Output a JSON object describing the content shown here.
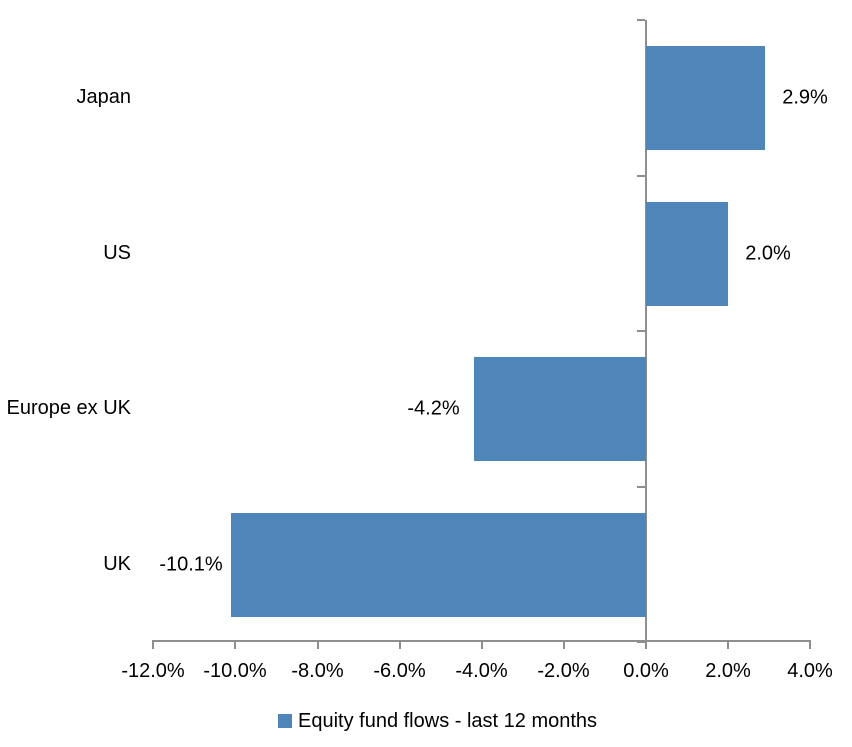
{
  "chart_data": {
    "type": "bar",
    "orientation": "horizontal",
    "title": "",
    "categories": [
      "Japan",
      "US",
      "Europe ex UK",
      "UK"
    ],
    "series": [
      {
        "name": "Equity fund flows - last 12 months",
        "values": [
          2.9,
          2.0,
          -4.2,
          -10.1
        ],
        "data_labels": [
          "2.9%",
          "2.0%",
          "-4.2%",
          "-10.1%"
        ],
        "color": "#4E86BA"
      }
    ],
    "x_axis": {
      "min": -12,
      "max": 4,
      "tick_values": [
        -12,
        -10,
        -8,
        -6,
        -4,
        -2,
        0,
        2,
        4
      ],
      "tick_labels": [
        "-12.0%",
        "-10.0%",
        "-8.0%",
        "-6.0%",
        "-4.0%",
        "-2.0%",
        "0.0%",
        "2.0%",
        "4.0%"
      ]
    },
    "legend": {
      "position": "bottom",
      "entries": [
        "Equity fund flows - last 12 months"
      ]
    },
    "grid": false,
    "colors": {
      "bar": "#4E86BA",
      "axis": "#8E8E8E",
      "text": "#000000",
      "background": "#FFFFFF"
    }
  }
}
